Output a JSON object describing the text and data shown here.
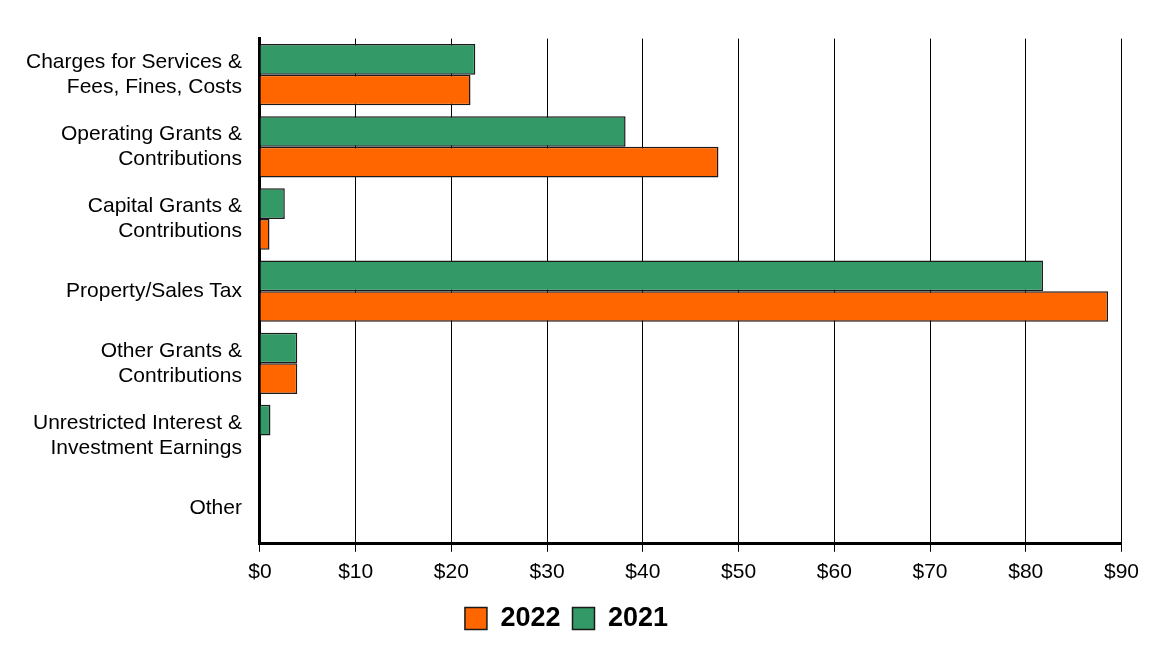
{
  "chart_data": {
    "type": "bar",
    "orientation": "horizontal",
    "categories": [
      "Charges for Services & Fees, Fines, Costs",
      "Operating Grants & Contributions",
      "Capital Grants & Contributions",
      "Property/Sales Tax",
      "Other Grants & Contributions",
      "Unrestricted Interest & Investment Earnings",
      "Other"
    ],
    "series": [
      {
        "name": "2021",
        "color": "#339966",
        "values": [
          22.5,
          38.2,
          2.6,
          81.8,
          3.9,
          1.1,
          0
        ]
      },
      {
        "name": "2022",
        "color": "#ff6600",
        "values": [
          22.0,
          47.9,
          1.0,
          88.6,
          3.9,
          0,
          0
        ]
      }
    ],
    "xlim": [
      0,
      90
    ],
    "xticks": [
      {
        "value": 0,
        "label": "$0"
      },
      {
        "value": 10,
        "label": "$10"
      },
      {
        "value": 20,
        "label": "$20"
      },
      {
        "value": 30,
        "label": "$30"
      },
      {
        "value": 40,
        "label": "$40"
      },
      {
        "value": 50,
        "label": "$50"
      },
      {
        "value": 60,
        "label": "$60"
      },
      {
        "value": 70,
        "label": "$70"
      },
      {
        "value": 80,
        "label": "$80"
      },
      {
        "value": 90,
        "label": "$90"
      }
    ],
    "grid": "x",
    "legend": "bottom"
  }
}
